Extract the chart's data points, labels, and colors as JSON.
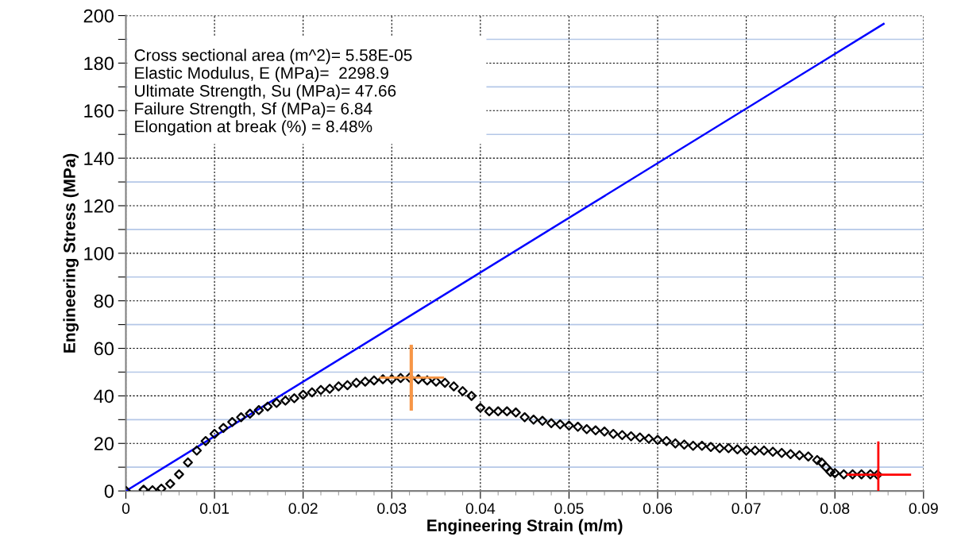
{
  "chart_data": {
    "type": "scatter",
    "xlabel": "Engineering Strain (m/m)",
    "ylabel": "Engineering Stress (MPa)",
    "xlim": [
      0,
      0.09
    ],
    "xticks": [
      0,
      0.01,
      0.02,
      0.03,
      0.04,
      0.05,
      0.06,
      0.07,
      0.08,
      0.09
    ],
    "ylim": [
      0,
      200
    ],
    "yticks": [
      0,
      {
        "value": 10,
        "label": null
      },
      20,
      {
        "value": 30,
        "label": null
      },
      40,
      {
        "value": 50,
        "label": null
      },
      60,
      {
        "value": 70,
        "label": null
      },
      80,
      {
        "value": 90,
        "label": null
      },
      100,
      {
        "value": 110,
        "label": null
      },
      120,
      {
        "value": 130,
        "label": null
      },
      140,
      {
        "value": 150,
        "label": null
      },
      160,
      {
        "value": 170,
        "label": null
      },
      180,
      {
        "value": 190,
        "label": null
      },
      200
    ],
    "grid": true,
    "annotations": [
      "Cross sectional area (m^2)= 5.58E-05",
      "Elastic Modulus, E (MPa)=  2298.9",
      "Ultimate Strength, Su (MPa)= 47.66",
      "Failure Strength, Sf (MPa)= 6.84",
      "Elongation at break (%) = 8.48%"
    ],
    "series": [
      {
        "type": "line",
        "color": "#0000ff",
        "marker": "none",
        "line_style": "solid",
        "x": [
          0,
          0.0855
        ],
        "values": [
          0,
          196.5
        ]
      },
      {
        "color": "#000000",
        "marker": "diamond",
        "x": [
          0,
          0.002,
          0.003,
          0.004,
          0.005,
          0.006,
          0.007,
          0.008,
          0.009,
          0.01,
          0.011,
          0.012,
          0.013,
          0.014,
          0.015,
          0.016,
          0.017,
          0.018,
          0.019,
          0.02,
          0.021,
          0.022,
          0.023,
          0.024,
          0.025,
          0.026,
          0.027,
          0.028,
          0.029,
          0.03,
          0.031,
          0.032,
          0.033,
          0.034,
          0.035,
          0.036,
          0.037,
          0.038,
          0.039,
          0.04,
          0.041,
          0.042,
          0.043,
          0.044,
          0.045,
          0.046,
          0.047,
          0.048,
          0.049,
          0.05,
          0.051,
          0.052,
          0.053,
          0.054,
          0.055,
          0.056,
          0.057,
          0.058,
          0.059,
          0.06,
          0.061,
          0.062,
          0.063,
          0.064,
          0.065,
          0.066,
          0.067,
          0.068,
          0.069,
          0.07,
          0.071,
          0.072,
          0.073,
          0.074,
          0.075,
          0.076,
          0.077,
          0.078,
          0.0785,
          0.079,
          0.0795,
          0.08,
          0.081,
          0.082,
          0.083,
          0.084,
          0.0848
        ],
        "values": [
          0,
          0.5,
          0.3,
          1,
          3,
          7,
          12,
          17,
          21,
          24,
          26.5,
          29,
          31,
          32.5,
          34,
          35.5,
          37,
          38,
          39,
          40.5,
          41.5,
          42.5,
          43,
          44,
          44.5,
          45.5,
          46,
          46.5,
          47,
          47,
          47.5,
          47.66,
          47,
          46.5,
          46,
          45.5,
          44,
          42,
          40,
          35,
          33.5,
          33.5,
          33.5,
          33,
          31,
          30,
          29.5,
          28.5,
          28,
          27.5,
          27,
          26,
          25.5,
          25,
          24,
          23.5,
          23,
          22.5,
          22,
          21.5,
          21,
          20,
          19.5,
          19,
          19,
          18.5,
          18,
          18,
          17.5,
          17,
          17,
          17,
          16.5,
          16,
          15.5,
          15,
          14.5,
          13,
          12,
          10,
          8,
          7.5,
          7,
          7,
          7,
          7,
          6.84
        ]
      },
      {
        "type": "scatter",
        "color": "#f79646",
        "marker": "circle",
        "x": [
          0.0322
        ],
        "values": [
          47.66
        ],
        "errors": [
          [
            33.8,
            61.5
          ]
        ],
        "xerrors": [
          [
            0.0286,
            0.0359
          ]
        ]
      },
      {
        "type": "scatter",
        "color": "#ff0000",
        "marker": "circle",
        "x": [
          0.0849
        ],
        "values": [
          6.84
        ],
        "errors": [
          [
            0,
            20.8
          ]
        ],
        "xerrors": [
          [
            0.0813,
            0.0886
          ]
        ]
      }
    ]
  }
}
